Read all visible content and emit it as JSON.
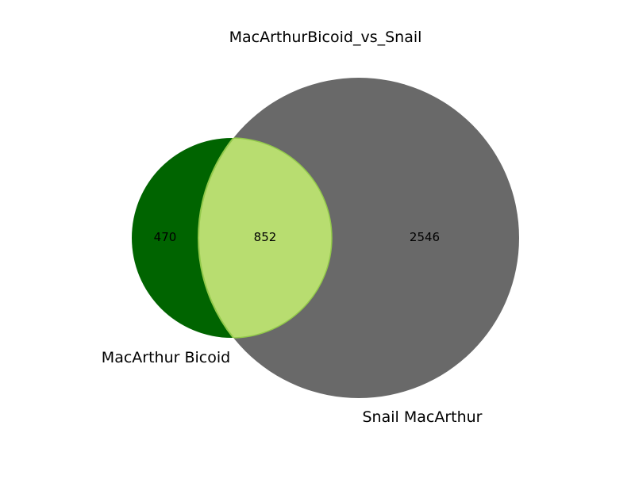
{
  "title": "MacArthurBicoid_vs_Snail",
  "sets": {
    "a": {
      "label": "MacArthur Bicoid",
      "only_count": "470",
      "color": "#006400"
    },
    "b": {
      "label": "Snail MacArthur",
      "only_count": "2546",
      "color": "#696969"
    }
  },
  "intersection": {
    "count": "852",
    "color": "#b8dd70",
    "edge_color": "#92c94a"
  },
  "chart_data": {
    "type": "venn",
    "title": "MacArthurBicoid_vs_Snail",
    "sets": [
      "MacArthur Bicoid",
      "Snail MacArthur"
    ],
    "regions": {
      "MacArthur Bicoid only": 470,
      "Snail MacArthur only": 2546,
      "MacArthur Bicoid & Snail MacArthur": 852
    }
  }
}
